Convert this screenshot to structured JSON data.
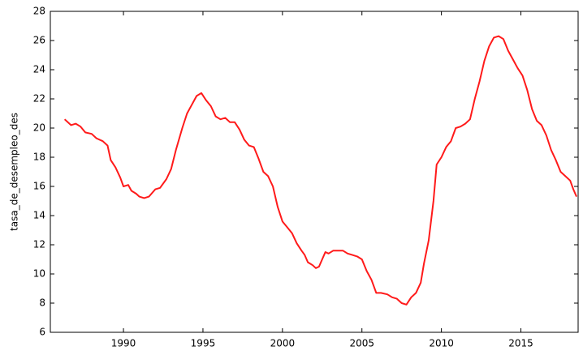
{
  "chart_data": {
    "type": "line",
    "y_label": "tasa_de_desempleo_des",
    "x": [
      1986.3,
      1986.7,
      1987.0,
      1987.3,
      1987.6,
      1988.0,
      1988.3,
      1988.7,
      1989.0,
      1989.2,
      1989.5,
      1989.8,
      1990.0,
      1990.3,
      1990.5,
      1990.8,
      1991.0,
      1991.3,
      1991.6,
      1992.0,
      1992.3,
      1992.7,
      1993.0,
      1993.3,
      1993.7,
      1994.0,
      1994.3,
      1994.6,
      1994.9,
      1995.2,
      1995.5,
      1995.8,
      1996.1,
      1996.4,
      1996.7,
      1997.0,
      1997.3,
      1997.6,
      1997.9,
      1998.2,
      1998.5,
      1998.8,
      1999.1,
      1999.4,
      1999.7,
      2000.0,
      2000.3,
      2000.6,
      2000.9,
      2001.2,
      2001.4,
      2001.6,
      2001.9,
      2002.1,
      2002.3,
      2002.5,
      2002.7,
      2002.9,
      2003.2,
      2003.5,
      2003.8,
      2004.1,
      2004.4,
      2004.7,
      2005.0,
      2005.3,
      2005.6,
      2005.9,
      2006.2,
      2006.6,
      2006.9,
      2007.2,
      2007.5,
      2007.8,
      2008.1,
      2008.4,
      2008.7,
      2008.9,
      2009.2,
      2009.5,
      2009.7,
      2010.0,
      2010.3,
      2010.6,
      2010.9,
      2011.2,
      2011.5,
      2011.8,
      2012.1,
      2012.4,
      2012.7,
      2013.0,
      2013.3,
      2013.6,
      2013.9,
      2014.2,
      2014.5,
      2014.8,
      2015.1,
      2015.4,
      2015.7,
      2016.0,
      2016.3,
      2016.6,
      2016.9,
      2017.2,
      2017.5,
      2017.8,
      2018.1,
      2018.3,
      2018.5
    ],
    "series": [
      {
        "name": "tasa_de_desempleo_des",
        "color": "#ff1a1a",
        "values": [
          20.6,
          20.2,
          20.3,
          20.1,
          19.7,
          19.6,
          19.3,
          19.1,
          18.8,
          17.8,
          17.3,
          16.6,
          16.0,
          16.1,
          15.7,
          15.5,
          15.3,
          15.2,
          15.3,
          15.8,
          15.9,
          16.5,
          17.2,
          18.5,
          20.0,
          21.0,
          21.6,
          22.2,
          22.4,
          21.9,
          21.5,
          20.8,
          20.6,
          20.7,
          20.4,
          20.4,
          19.9,
          19.2,
          18.8,
          18.7,
          17.9,
          17.0,
          16.7,
          16.0,
          14.6,
          13.6,
          13.2,
          12.8,
          12.1,
          11.6,
          11.3,
          10.8,
          10.6,
          10.4,
          10.5,
          11.0,
          11.5,
          11.4,
          11.6,
          11.6,
          11.6,
          11.4,
          11.3,
          11.2,
          11.0,
          10.2,
          9.6,
          8.7,
          8.7,
          8.6,
          8.4,
          8.3,
          8.0,
          7.9,
          8.4,
          8.7,
          9.4,
          10.7,
          12.3,
          15.0,
          17.5,
          18.0,
          18.7,
          19.1,
          20.0,
          20.1,
          20.3,
          20.6,
          22.0,
          23.2,
          24.6,
          25.6,
          26.2,
          26.3,
          26.1,
          25.3,
          24.7,
          24.1,
          23.6,
          22.6,
          21.3,
          20.5,
          20.2,
          19.5,
          18.5,
          17.8,
          17.0,
          16.7,
          16.4,
          15.8,
          15.3
        ]
      }
    ],
    "xlim": [
      1985.4,
      2018.6
    ],
    "xticks": [
      1990,
      1995,
      2000,
      2005,
      2010,
      2015
    ],
    "ylim": [
      6,
      28
    ],
    "yticks": [
      6,
      8,
      10,
      12,
      14,
      16,
      18,
      20,
      22,
      24,
      26,
      28
    ]
  }
}
